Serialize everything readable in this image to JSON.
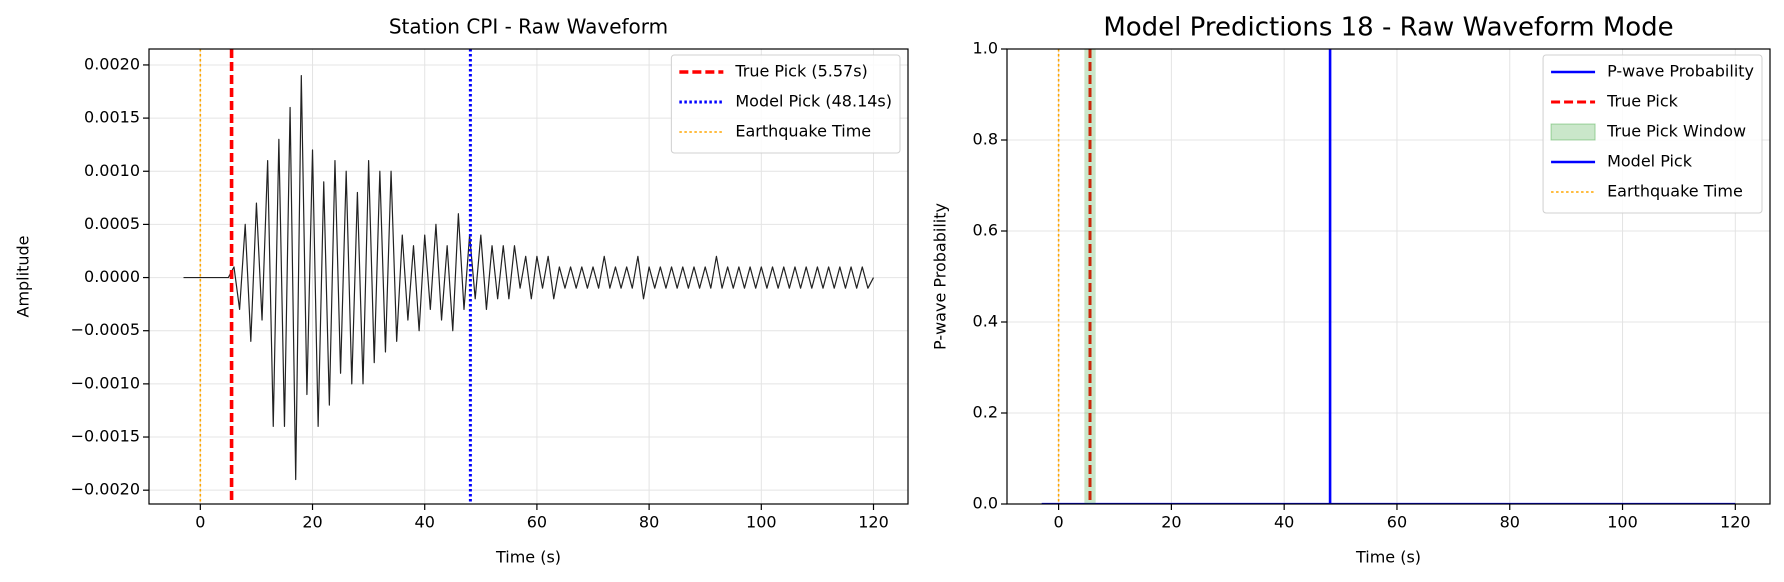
{
  "chart_data": [
    {
      "type": "line",
      "title": "Station CPI - Raw Waveform",
      "x_label": "Time (s)",
      "y_label": "Amplitude",
      "x": [
        -3,
        -2,
        -1,
        0,
        1,
        2,
        3,
        4,
        5,
        6,
        7,
        8,
        9,
        10,
        11,
        12,
        13,
        14,
        15,
        16,
        17,
        18,
        19,
        20,
        21,
        22,
        23,
        24,
        25,
        26,
        27,
        28,
        29,
        30,
        31,
        32,
        33,
        34,
        35,
        36,
        37,
        38,
        39,
        40,
        41,
        42,
        43,
        44,
        45,
        46,
        47,
        48,
        49,
        50,
        51,
        52,
        53,
        54,
        55,
        56,
        57,
        58,
        59,
        60,
        61,
        62,
        63,
        64,
        65,
        66,
        67,
        68,
        69,
        70,
        71,
        72,
        73,
        74,
        75,
        76,
        77,
        78,
        79,
        80,
        81,
        82,
        83,
        84,
        85,
        86,
        87,
        88,
        89,
        90,
        91,
        92,
        93,
        94,
        95,
        96,
        97,
        98,
        99,
        100,
        101,
        102,
        103,
        104,
        105,
        106,
        107,
        108,
        109,
        110,
        111,
        112,
        113,
        114,
        115,
        116,
        117,
        118,
        119,
        120
      ],
      "series": [
        {
          "color": "#222222",
          "values": [
            0,
            0,
            0,
            0,
            0,
            0,
            0,
            0,
            0,
            0.0001,
            -0.0003,
            0.0005,
            -0.0006,
            0.0007,
            -0.0004,
            0.0011,
            -0.0014,
            0.0013,
            -0.0014,
            0.0016,
            -0.0019,
            0.0019,
            -0.0011,
            0.0012,
            -0.0014,
            0.0009,
            -0.0012,
            0.0011,
            -0.0009,
            0.001,
            -0.001,
            0.0008,
            -0.001,
            0.0011,
            -0.0008,
            0.001,
            -0.0007,
            0.001,
            -0.0006,
            0.0004,
            -0.0004,
            0.0003,
            -0.0005,
            0.0004,
            -0.0003,
            0.0005,
            -0.0004,
            0.0003,
            -0.0005,
            0.0006,
            -0.0003,
            0.0004,
            -0.0002,
            0.0004,
            -0.0003,
            0.0003,
            -0.0002,
            0.0003,
            -0.0002,
            0.0003,
            -0.0001,
            0.0002,
            -0.0002,
            0.0002,
            -0.0001,
            0.0002,
            -0.0002,
            0.0001,
            -0.0001,
            0.0001,
            -0.0001,
            0.0001,
            -0.0001,
            0.0001,
            -0.0001,
            0.0002,
            -0.0001,
            0.0001,
            -0.0001,
            0.0001,
            -0.0001,
            0.0002,
            -0.0002,
            0.0001,
            -0.0001,
            0.0001,
            -0.0001,
            0.0001,
            -0.0001,
            0.0001,
            -0.0001,
            0.0001,
            -0.0001,
            0.0001,
            -0.0001,
            0.0002,
            -0.0001,
            0.0001,
            -0.0001,
            0.0001,
            -0.0001,
            0.0001,
            -0.0001,
            0.0001,
            -0.0001,
            0.0001,
            -0.0001,
            0.0001,
            -0.0001,
            0.0001,
            -0.0001,
            0.0001,
            -0.0001,
            0.0001,
            -0.0001,
            0.0001,
            -0.0001,
            0.0001,
            -0.0001,
            0.0001,
            -0.0001,
            0.0001,
            -0.0001,
            0
          ]
        }
      ],
      "overlays": [
        {
          "kind": "vline",
          "name": "True Pick (5.57s)",
          "x": 5.57,
          "color": "#ff0000",
          "style": "dashed"
        },
        {
          "kind": "vline",
          "name": "Model Pick (48.14s)",
          "x": 48.14,
          "color": "#0000ff",
          "style": "dotted"
        },
        {
          "kind": "vline",
          "name": "Earthquake Time",
          "x": 0,
          "color": "#ffa500",
          "style": "dotted"
        }
      ],
      "xlim": [
        -9.15,
        126.15
      ],
      "xticks": [
        0,
        20,
        40,
        60,
        80,
        100,
        120
      ],
      "ylim": [
        -0.00213,
        0.00215
      ],
      "yticks": [
        {
          "value": -0.002,
          "label": "−0.0020"
        },
        {
          "value": -0.0015,
          "label": "−0.0015"
        },
        {
          "value": -0.001,
          "label": "−0.0010"
        },
        {
          "value": -0.0005,
          "label": "−0.0005"
        },
        {
          "value": 0,
          "label": "0.0000"
        },
        {
          "value": 0.0005,
          "label": "0.0005"
        },
        {
          "value": 0.001,
          "label": "0.0010"
        },
        {
          "value": 0.0015,
          "label": "0.0015"
        },
        {
          "value": 0.002,
          "label": "0.0020"
        }
      ],
      "grid": true,
      "legend": "upper right"
    },
    {
      "type": "line",
      "title": "Model Predictions 18 - Raw Waveform Mode",
      "x_label": "Time (s)",
      "y_label": "P-wave Probability",
      "x": [
        -3,
        30,
        60,
        90,
        120
      ],
      "series": [
        {
          "name": "P-wave Probability",
          "color": "#0000ff",
          "values": [
            0,
            0,
            0,
            0,
            0
          ]
        }
      ],
      "overlays": [
        {
          "kind": "vline",
          "name": "True Pick",
          "x": 5.57,
          "color": "#ff0000",
          "style": "dashed"
        },
        {
          "kind": "span",
          "name": "True Pick Window",
          "range": [
            4.57,
            6.57
          ],
          "color": "#2ca02c"
        },
        {
          "kind": "vline",
          "name": "Model Pick",
          "x": 48.14,
          "color": "#0000ff",
          "style": "solid"
        },
        {
          "kind": "vline",
          "name": "Earthquake Time",
          "x": 0,
          "color": "#ffa500",
          "style": "dotted"
        }
      ],
      "xlim": [
        -9.15,
        126.15
      ],
      "xticks": [
        0,
        20,
        40,
        60,
        80,
        100,
        120
      ],
      "ylim": [
        0,
        1
      ],
      "yticks": [
        {
          "value": 0,
          "label": "0.0"
        },
        0.2,
        0.4,
        0.6,
        0.8,
        {
          "value": 1,
          "label": "1.0"
        }
      ],
      "grid": true,
      "legend": "upper right"
    }
  ]
}
